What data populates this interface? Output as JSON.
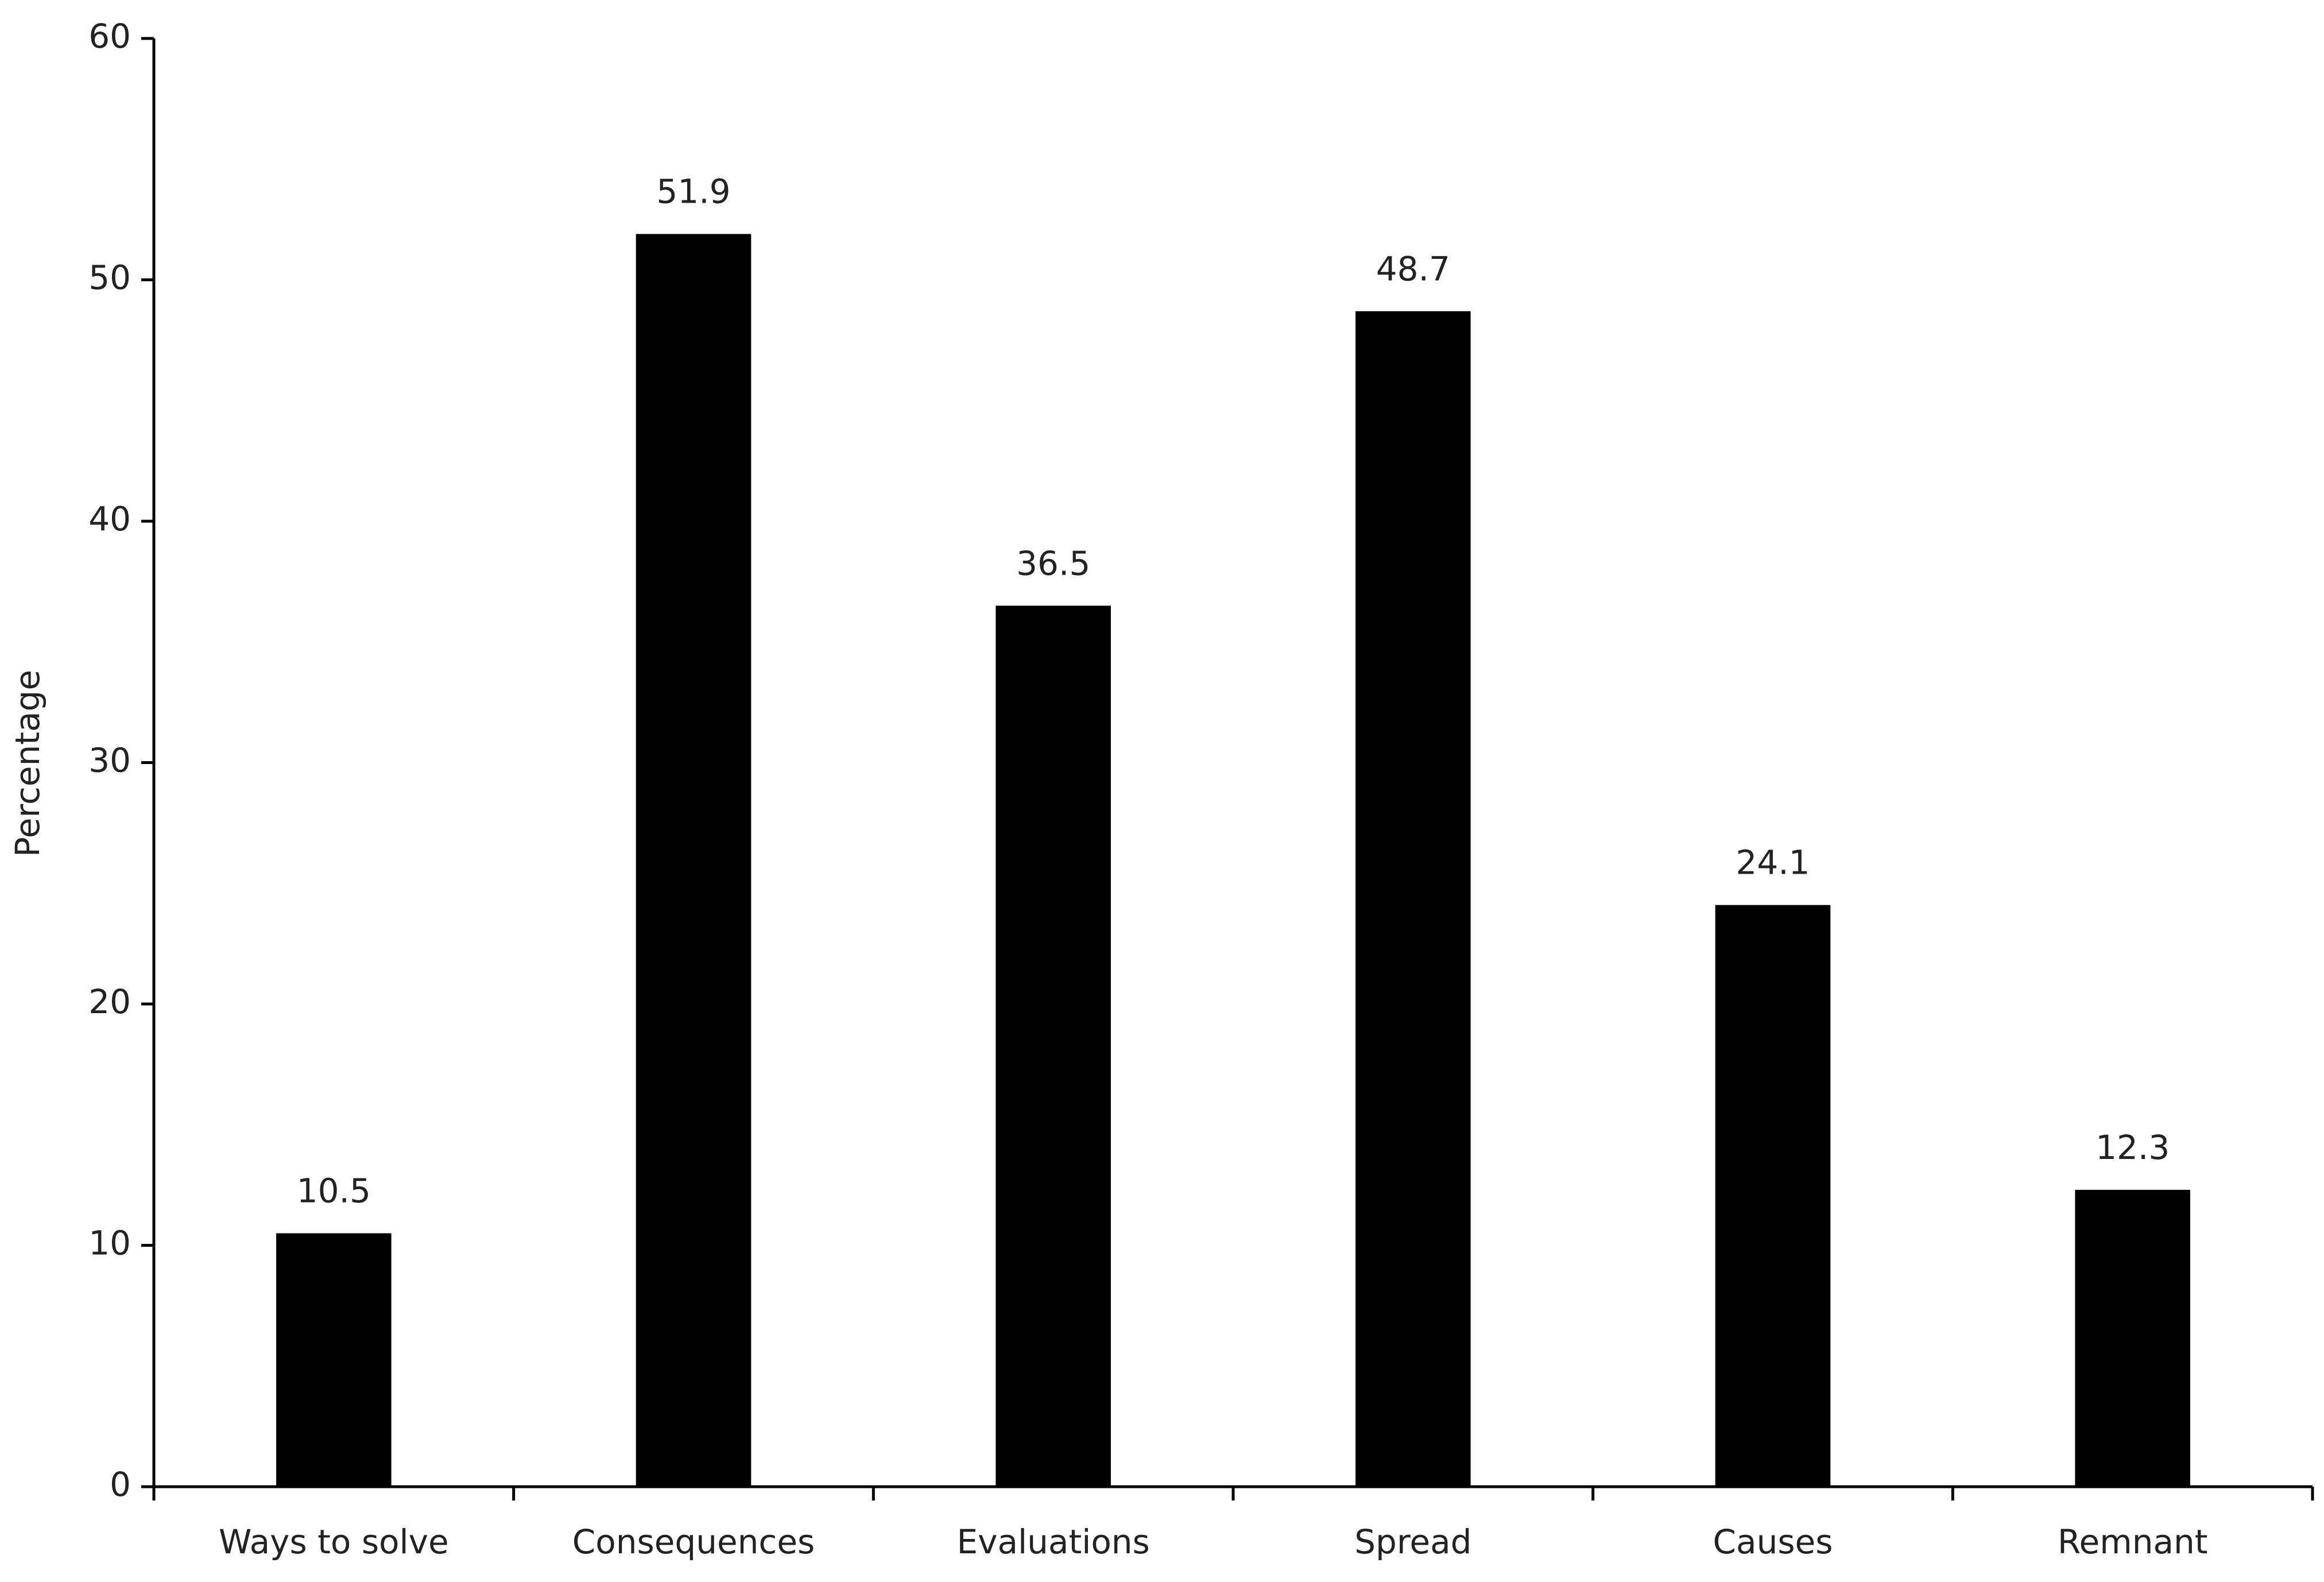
{
  "chart_data": {
    "type": "bar",
    "y_label": "Percentage",
    "categories": [
      "Ways to solve",
      "Consequences",
      "Evaluations",
      "Spread",
      "Causes",
      "Remnant"
    ],
    "values": [
      10.5,
      51.9,
      36.5,
      48.7,
      24.1,
      12.3
    ],
    "color": "#000000",
    "ylim": [
      0,
      60
    ],
    "yticks": [
      0,
      10,
      20,
      30,
      40,
      50,
      60
    ],
    "grid": false,
    "show_value_labels": true
  }
}
